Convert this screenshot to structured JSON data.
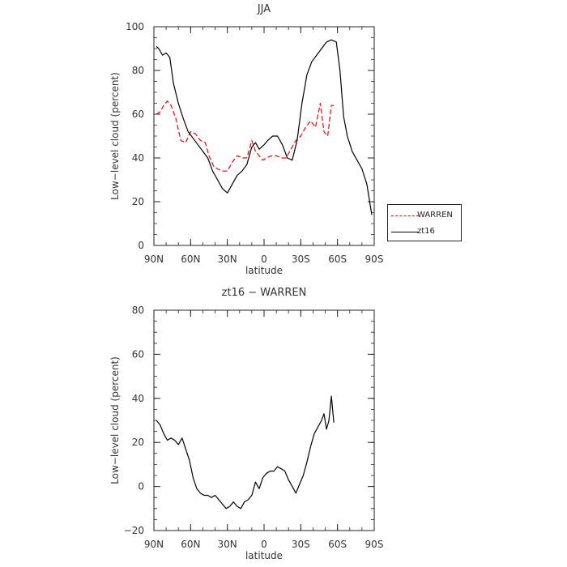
{
  "chart_data": [
    {
      "type": "line",
      "title": "JJA",
      "xlabel": "latitude",
      "ylabel": "Low−level cloud (percent)",
      "xlim": [
        90,
        -90
      ],
      "ylim": [
        0,
        100
      ],
      "xticks": [
        90,
        60,
        30,
        0,
        -30,
        -60,
        -90
      ],
      "xtick_labels": [
        "90N",
        "60N",
        "30N",
        "0",
        "30S",
        "60S",
        "90S"
      ],
      "yticks": [
        0,
        20,
        40,
        60,
        80,
        100
      ],
      "ytick_labels": [
        "0",
        "20",
        "40",
        "60",
        "80",
        "100"
      ],
      "legend": "outside-right",
      "series": [
        {
          "name": "WARREN",
          "color": "#ff0000",
          "dash": true,
          "x": [
            88,
            85,
            82,
            79,
            76,
            72,
            68,
            64,
            60,
            56,
            52,
            48,
            45,
            41,
            38,
            34,
            30,
            26,
            22,
            18,
            14,
            10,
            7,
            4,
            1,
            -2,
            -6,
            -10,
            -14,
            -18,
            -22,
            -26,
            -30,
            -34,
            -38,
            -42,
            -46,
            -49,
            -52,
            -55,
            -57
          ],
          "y": [
            60,
            61,
            64,
            66,
            64,
            58,
            48,
            47,
            52,
            51,
            48,
            47,
            41,
            36,
            35,
            34,
            34,
            38,
            41,
            40,
            40,
            48,
            43,
            41,
            39,
            40,
            41,
            41,
            40,
            40,
            44,
            48,
            50,
            54,
            57,
            54,
            65,
            52,
            50,
            64,
            64
          ]
        },
        {
          "name": "zt16",
          "color": "#000000",
          "dash": false,
          "x": [
            88,
            86,
            83,
            80,
            77,
            74,
            70,
            66,
            62,
            58,
            54,
            50,
            46,
            42,
            38,
            34,
            30,
            26,
            22,
            18,
            14,
            10,
            7,
            4,
            0,
            -3,
            -7,
            -11,
            -15,
            -19,
            -23,
            -27,
            -31,
            -35,
            -39,
            -43,
            -47,
            -51,
            -55,
            -59,
            -62,
            -65,
            -68,
            -72,
            -76,
            -80,
            -84,
            -88
          ],
          "y": [
            91,
            90,
            87,
            88,
            86,
            74,
            65,
            58,
            52,
            49,
            46,
            43,
            40,
            34,
            30,
            26,
            24,
            28,
            32,
            34,
            37,
            45,
            47,
            44,
            46,
            48,
            50,
            50,
            46,
            40,
            39,
            48,
            65,
            78,
            84,
            87,
            90,
            93,
            94,
            93,
            80,
            59,
            50,
            43,
            39,
            35,
            28,
            14
          ]
        }
      ]
    },
    {
      "type": "line",
      "title": "zt16 − WARREN",
      "xlabel": "latitude",
      "ylabel": "Low−level cloud (percent)",
      "xlim": [
        90,
        -90
      ],
      "ylim": [
        -20,
        80
      ],
      "xticks": [
        90,
        60,
        30,
        0,
        -30,
        -60,
        -90
      ],
      "xtick_labels": [
        "90N",
        "60N",
        "30N",
        "0",
        "30S",
        "60S",
        "90S"
      ],
      "yticks": [
        -20,
        0,
        20,
        40,
        60,
        80
      ],
      "ytick_labels": [
        "−20",
        "0",
        "20",
        "40",
        "60",
        "80"
      ],
      "series": [
        {
          "name": "",
          "color": "#000000",
          "dash": false,
          "x": [
            88,
            85,
            82,
            79,
            76,
            73,
            70,
            67,
            64,
            61,
            58,
            55,
            52,
            49,
            46,
            43,
            40,
            37,
            34,
            31,
            28,
            25,
            22,
            19,
            16,
            13,
            10,
            7,
            4,
            1,
            -2,
            -5,
            -8,
            -11,
            -14,
            -17,
            -20,
            -23,
            -26,
            -29,
            -32,
            -35,
            -38,
            -41,
            -44,
            -47,
            -49,
            -51,
            -53,
            -55,
            -57
          ],
          "y": [
            30,
            28,
            24,
            21,
            22,
            21,
            19,
            22,
            17,
            12,
            4,
            -1,
            -3,
            -4,
            -4,
            -5,
            -4,
            -6,
            -8,
            -10,
            -9,
            -7,
            -9,
            -10,
            -7,
            -6,
            -4,
            2,
            -1,
            4,
            6,
            7,
            7,
            9,
            8,
            7,
            3,
            0,
            -3,
            1,
            5,
            11,
            18,
            24,
            27,
            30,
            33,
            26,
            30,
            41,
            29
          ]
        }
      ]
    }
  ],
  "legend": {
    "items": [
      {
        "label": "WARREN",
        "color": "#ff0000",
        "dash": true
      },
      {
        "label": "zt16",
        "color": "#000000",
        "dash": false
      }
    ]
  }
}
